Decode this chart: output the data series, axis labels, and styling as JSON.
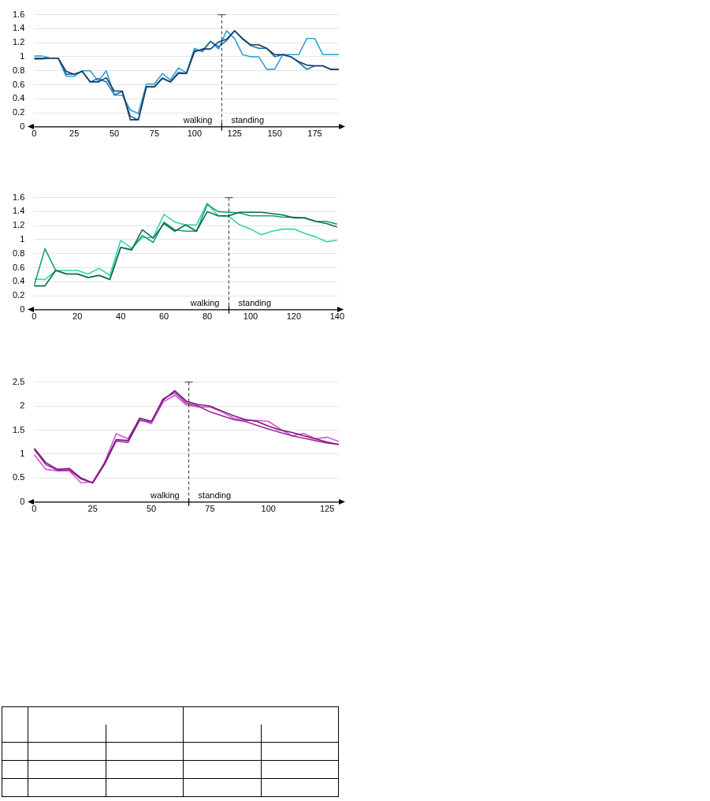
{
  "chart_data": [
    {
      "type": "line",
      "x": [
        0,
        5,
        10,
        15,
        20,
        25,
        30,
        35,
        40,
        45,
        50,
        55,
        60,
        65,
        70,
        75,
        80,
        85,
        90,
        95,
        100,
        105,
        110,
        115,
        120,
        125,
        130,
        135,
        140,
        145,
        150,
        155,
        160,
        165,
        170,
        175,
        180,
        185,
        190
      ],
      "series": [
        {
          "color": "#1b3a5c",
          "values": [
            0.97,
            0.97,
            0.98,
            0.98,
            0.79,
            0.75,
            0.79,
            0.64,
            0.64,
            0.7,
            0.51,
            0.51,
            0.1,
            0.1,
            0.57,
            0.57,
            0.69,
            0.64,
            0.76,
            0.76,
            1.07,
            1.11,
            1.11,
            1.21,
            1.25,
            1.37,
            1.26,
            1.17,
            1.17,
            1.12,
            1.03,
            1.03,
            1.0,
            0.93,
            0.88,
            0.87,
            0.87,
            0.82,
            0.82
          ]
        },
        {
          "color": "#1f6ea6",
          "values": [
            0.98,
            0.98,
            0.98,
            0.98,
            0.75,
            0.75,
            0.79,
            0.64,
            0.69,
            0.64,
            0.46,
            0.5,
            0.15,
            0.1,
            0.57,
            0.57,
            0.7,
            0.64,
            0.78,
            0.76,
            1.09,
            1.09,
            1.22,
            1.14,
            1.23,
            1.37,
            1.25,
            1.16,
            1.12,
            1.12,
            1.0,
            1.03,
            1.0,
            0.92,
            0.82,
            0.87,
            0.87,
            0.82,
            0.82
          ]
        },
        {
          "color": "#2b9fdb",
          "values": [
            1.01,
            1.01,
            0.98,
            0.98,
            0.72,
            0.72,
            0.8,
            0.8,
            0.65,
            0.8,
            0.45,
            0.45,
            0.24,
            0.19,
            0.61,
            0.61,
            0.76,
            0.67,
            0.84,
            0.77,
            1.12,
            1.07,
            1.22,
            1.11,
            1.37,
            1.26,
            1.03,
            1.0,
            1.0,
            0.82,
            0.82,
            1.03,
            1.03,
            1.03,
            1.26,
            1.26,
            1.03,
            1.03,
            1.03
          ]
        }
      ],
      "xlim": [
        0,
        190
      ],
      "xticks": [
        0,
        25,
        50,
        75,
        100,
        125,
        150,
        175
      ],
      "ylim": [
        0,
        1.6
      ],
      "yticks": [
        0,
        0.2,
        0.4,
        0.6,
        0.8,
        1,
        1.2,
        1.4,
        1.6
      ],
      "grid": "y",
      "legend": false,
      "marker": "none",
      "line_style": "solid",
      "ref_lines": [
        {
          "axis": "x",
          "value": 117,
          "line_style": "dashed"
        }
      ],
      "annotations": [
        "walking",
        "standing"
      ]
    },
    {
      "type": "line",
      "x": [
        0,
        5,
        10,
        15,
        20,
        25,
        30,
        35,
        40,
        45,
        50,
        55,
        60,
        65,
        70,
        75,
        80,
        85,
        90,
        95,
        100,
        105,
        110,
        115,
        120,
        125,
        130,
        135,
        140
      ],
      "series": [
        {
          "color": "#0f6b55",
          "values": [
            0.34,
            0.34,
            0.56,
            0.51,
            0.51,
            0.46,
            0.49,
            0.43,
            0.89,
            0.85,
            1.14,
            1.02,
            1.23,
            1.12,
            1.21,
            1.12,
            1.4,
            1.34,
            1.34,
            1.39,
            1.39,
            1.39,
            1.37,
            1.35,
            1.31,
            1.31,
            1.26,
            1.23,
            1.18
          ]
        },
        {
          "color": "#15a07c",
          "values": [
            0.34,
            0.87,
            0.56,
            0.51,
            0.51,
            0.46,
            0.49,
            0.43,
            0.89,
            0.86,
            1.06,
            0.96,
            1.25,
            1.14,
            1.12,
            1.12,
            1.5,
            1.4,
            1.39,
            1.38,
            1.34,
            1.34,
            1.34,
            1.32,
            1.32,
            1.31,
            1.26,
            1.26,
            1.22
          ]
        },
        {
          "color": "#30d6a8",
          "values": [
            0.44,
            0.43,
            0.56,
            0.56,
            0.56,
            0.51,
            0.59,
            0.49,
            0.99,
            0.88,
            1.03,
            1.03,
            1.36,
            1.25,
            1.21,
            1.21,
            1.52,
            1.34,
            1.33,
            1.21,
            1.15,
            1.07,
            1.12,
            1.15,
            1.15,
            1.09,
            1.04,
            0.97,
            0.99
          ]
        }
      ],
      "xlim": [
        0,
        140
      ],
      "xticks": [
        0,
        20,
        40,
        60,
        80,
        100,
        120,
        140
      ],
      "ylim": [
        0,
        1.6
      ],
      "yticks": [
        0,
        0.2,
        0.4,
        0.6,
        0.8,
        1,
        1.2,
        1.4,
        1.6
      ],
      "grid": "y",
      "legend": false,
      "marker": "none",
      "line_style": "solid",
      "ref_lines": [
        {
          "axis": "x",
          "value": 90,
          "line_style": "dashed"
        }
      ],
      "annotations": [
        "walking",
        "standing"
      ]
    },
    {
      "type": "line",
      "x": [
        0,
        5,
        10,
        15,
        20,
        25,
        30,
        35,
        40,
        45,
        50,
        55,
        60,
        65,
        70,
        75,
        80,
        85,
        90,
        95,
        100,
        105,
        110,
        115,
        120,
        125,
        130
      ],
      "series": [
        {
          "color": "#6e1f70",
          "values": [
            1.12,
            0.82,
            0.68,
            0.7,
            0.5,
            0.4,
            0.8,
            1.3,
            1.28,
            1.75,
            1.68,
            2.12,
            2.32,
            2.1,
            2.03,
            2.0,
            1.9,
            1.8,
            1.72,
            1.68,
            1.58,
            1.5,
            1.45,
            1.38,
            1.32,
            1.25,
            1.2
          ]
        },
        {
          "color": "#a423aa",
          "values": [
            1.1,
            0.78,
            0.66,
            0.67,
            0.48,
            0.4,
            0.78,
            1.27,
            1.24,
            1.7,
            1.67,
            2.15,
            2.28,
            2.06,
            2.0,
            1.88,
            1.8,
            1.72,
            1.68,
            1.6,
            1.52,
            1.45,
            1.38,
            1.33,
            1.28,
            1.23,
            1.2
          ]
        },
        {
          "color": "#db52db",
          "values": [
            0.99,
            0.68,
            0.65,
            0.65,
            0.4,
            0.42,
            0.82,
            1.42,
            1.32,
            1.72,
            1.63,
            2.08,
            2.23,
            2.02,
            1.98,
            1.98,
            1.88,
            1.75,
            1.7,
            1.7,
            1.68,
            1.52,
            1.38,
            1.43,
            1.32,
            1.35,
            1.26
          ]
        }
      ],
      "xlim": [
        0,
        130
      ],
      "xticks": [
        0,
        25,
        50,
        75,
        100,
        125
      ],
      "ylim": [
        0,
        2.5
      ],
      "yticks": [
        0,
        0.5,
        1,
        1.5,
        2,
        2.5
      ],
      "grid": "y",
      "legend": false,
      "marker": "none",
      "line_style": "solid",
      "ref_lines": [
        {
          "axis": "x",
          "value": 66,
          "line_style": "dashed"
        }
      ],
      "annotations": [
        "walking",
        "standing"
      ]
    }
  ]
}
